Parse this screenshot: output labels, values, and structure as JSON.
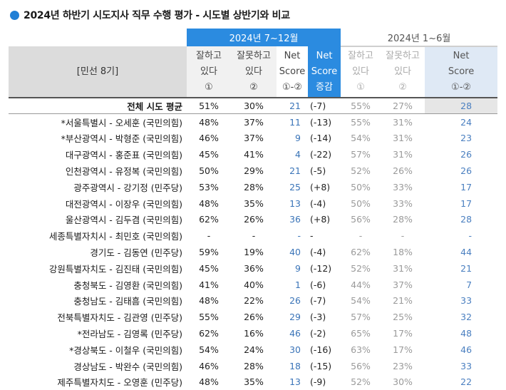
{
  "title": "2024년 하반기 시도지사 직무 수행 평가 - 시도별 상반기와 비교",
  "colors": {
    "accent": "#2b8be0",
    "title_dot": "#1f7fd6"
  },
  "header": {
    "row_label": "[민선 8기]",
    "current_period": "2024년 7~12월",
    "previous_period": "2024년 1~6월",
    "col_good": [
      "잘하고",
      "있다",
      "①"
    ],
    "col_bad": [
      "잘못하고",
      "있다",
      "②"
    ],
    "col_net": [
      "Net",
      "Score",
      "①-②"
    ],
    "col_change": [
      "Net",
      "Score",
      "증감"
    ]
  },
  "rows": [
    {
      "name": "전체 시도 평균",
      "good": "51%",
      "bad": "30%",
      "net": "21",
      "change": "(-7)",
      "p_good": "55%",
      "p_bad": "27%",
      "p_net": "28"
    },
    {
      "name": "*서울특별시 - 오세훈 (국민의힘)",
      "good": "48%",
      "bad": "37%",
      "net": "11",
      "change": "(-13)",
      "p_good": "55%",
      "p_bad": "31%",
      "p_net": "24"
    },
    {
      "name": "*부산광역시 - 박형준 (국민의힘)",
      "good": "46%",
      "bad": "37%",
      "net": "9",
      "change": "(-14)",
      "p_good": "54%",
      "p_bad": "31%",
      "p_net": "23"
    },
    {
      "name": "대구광역시 - 홍준표 (국민의힘)",
      "good": "45%",
      "bad": "41%",
      "net": "4",
      "change": "(-22)",
      "p_good": "57%",
      "p_bad": "31%",
      "p_net": "26"
    },
    {
      "name": "인천광역시 - 유정복 (국민의힘)",
      "good": "50%",
      "bad": "29%",
      "net": "21",
      "change": "(-5)",
      "p_good": "52%",
      "p_bad": "26%",
      "p_net": "26"
    },
    {
      "name": "광주광역시 - 강기정 (민주당)",
      "good": "53%",
      "bad": "28%",
      "net": "25",
      "change": "(+8)",
      "p_good": "50%",
      "p_bad": "33%",
      "p_net": "17"
    },
    {
      "name": "대전광역시 - 이장우 (국민의힘)",
      "good": "48%",
      "bad": "35%",
      "net": "13",
      "change": "(-4)",
      "p_good": "50%",
      "p_bad": "33%",
      "p_net": "17"
    },
    {
      "name": "울산광역시 - 김두겸 (국민의힘)",
      "good": "62%",
      "bad": "26%",
      "net": "36",
      "change": "(+8)",
      "p_good": "56%",
      "p_bad": "28%",
      "p_net": "28"
    },
    {
      "name": "세종특별자치시 - 최민호 (국민의힘)",
      "good": "-",
      "bad": "-",
      "net": "-",
      "change": "-",
      "p_good": "-",
      "p_bad": "-",
      "p_net": "-"
    },
    {
      "name": "경기도 - 김동연 (민주당)",
      "good": "59%",
      "bad": "19%",
      "net": "40",
      "change": "(-4)",
      "p_good": "62%",
      "p_bad": "18%",
      "p_net": "44"
    },
    {
      "name": "강원특별자치도 - 김진태 (국민의힘)",
      "good": "45%",
      "bad": "36%",
      "net": "9",
      "change": "(-12)",
      "p_good": "52%",
      "p_bad": "31%",
      "p_net": "21"
    },
    {
      "name": "충청북도 - 김영환 (국민의힘)",
      "good": "41%",
      "bad": "40%",
      "net": "1",
      "change": "(-6)",
      "p_good": "44%",
      "p_bad": "37%",
      "p_net": "7"
    },
    {
      "name": "충청남도 - 김태흠 (국민의힘)",
      "good": "48%",
      "bad": "22%",
      "net": "26",
      "change": "(-7)",
      "p_good": "54%",
      "p_bad": "21%",
      "p_net": "33"
    },
    {
      "name": "전북특별자치도 - 김관영 (민주당)",
      "good": "55%",
      "bad": "26%",
      "net": "29",
      "change": "(-3)",
      "p_good": "57%",
      "p_bad": "25%",
      "p_net": "32"
    },
    {
      "name": "*전라남도 - 김영록 (민주당)",
      "good": "62%",
      "bad": "16%",
      "net": "46",
      "change": "(-2)",
      "p_good": "65%",
      "p_bad": "17%",
      "p_net": "48"
    },
    {
      "name": "*경상북도 - 이철우 (국민의힘)",
      "good": "54%",
      "bad": "24%",
      "net": "30",
      "change": "(-16)",
      "p_good": "63%",
      "p_bad": "17%",
      "p_net": "46"
    },
    {
      "name": "경상남도 - 박완수 (국민의힘)",
      "good": "46%",
      "bad": "28%",
      "net": "18",
      "change": "(-15)",
      "p_good": "56%",
      "p_bad": "23%",
      "p_net": "33"
    },
    {
      "name": "제주특별자치도 - 오영훈 (민주당)",
      "good": "48%",
      "bad": "35%",
      "net": "13",
      "change": "(-9)",
      "p_good": "52%",
      "p_bad": "30%",
      "p_net": "22"
    }
  ]
}
